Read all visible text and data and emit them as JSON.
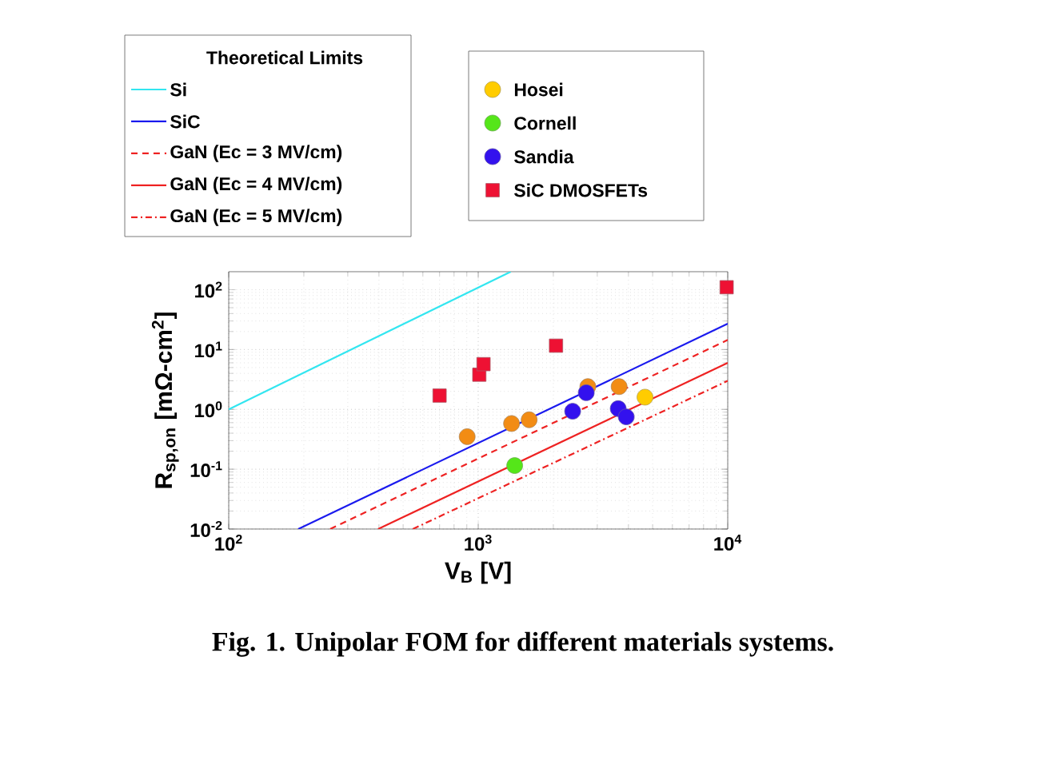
{
  "chart_data": {
    "type": "scatter",
    "xlabel": "V$_{B}$ [V]",
    "ylabel": "R$_{sp,on}$ [mΩ-cm$^{2}$]",
    "legend_title": "Theoretical Limits",
    "legend": "top",
    "grid": true,
    "log": "xy",
    "xlim": [
      100,
      10000
    ],
    "ylim": [
      0.01,
      200
    ],
    "xticks": [
      {
        "value": 100,
        "label": "10$^{2}$"
      },
      {
        "value": 1000,
        "label": "10$^{3}$"
      },
      {
        "value": 10000,
        "label": "10$^{4}$"
      }
    ],
    "yticks": [
      {
        "value": 0.01,
        "label": "10$^{-2}$"
      },
      {
        "value": 0.1,
        "label": "10$^{-1}$"
      },
      {
        "value": 1,
        "label": "10$^{0}$"
      },
      {
        "value": 10,
        "label": "10$^{1}$"
      },
      {
        "value": 100,
        "label": "10$^{2}$"
      }
    ],
    "series": [
      {
        "name": "Si",
        "type": "line",
        "line_style": "solid",
        "color": "#33e6f0",
        "x": [
          100,
          1350
        ],
        "values": [
          1.0,
          200
        ]
      },
      {
        "name": "SiC",
        "type": "line",
        "line_style": "solid",
        "color": "#1a1aee",
        "x": [
          190,
          10000
        ],
        "values": [
          0.01,
          27
        ]
      },
      {
        "name": "GaN (Ec = 3 MV/cm)",
        "type": "line",
        "line_style": "dashed",
        "color": "#ee2222",
        "x": [
          255,
          10000
        ],
        "values": [
          0.01,
          14.5
        ]
      },
      {
        "name": "GaN (Ec = 4 MV/cm)",
        "type": "line",
        "line_style": "solid",
        "color": "#ee2222",
        "x": [
          397,
          10000
        ],
        "values": [
          0.01,
          6.0
        ]
      },
      {
        "name": "GaN (Ec = 5 MV/cm)",
        "type": "line",
        "line_style": "dashdot",
        "color": "#ee2222",
        "x": [
          547,
          10000
        ],
        "values": [
          0.01,
          3.0
        ]
      },
      {
        "type": "scatter",
        "marker": "circle",
        "color": "#f28c14",
        "x": [
          903,
          1360,
          1600,
          2750,
          3670
        ],
        "values": [
          0.35,
          0.58,
          0.67,
          2.4,
          2.4
        ]
      },
      {
        "name": "Hosei",
        "type": "scatter",
        "marker": "circle",
        "color": "#ffcc00",
        "x": [
          4660
        ],
        "values": [
          1.6
        ]
      },
      {
        "name": "Cornell",
        "type": "scatter",
        "marker": "circle",
        "color": "#55e619",
        "x": [
          1400
        ],
        "values": [
          0.115
        ]
      },
      {
        "name": "Sandia",
        "type": "scatter",
        "marker": "circle",
        "color": "#3311ee",
        "x": [
          2390,
          2710,
          3640,
          3920
        ],
        "values": [
          0.93,
          1.9,
          1.03,
          0.75
        ]
      },
      {
        "name": "SiC DMOSFETs",
        "type": "scatter",
        "marker": "square",
        "color": "#ee1133",
        "x": [
          700,
          1010,
          1050,
          2050,
          9900
        ],
        "values": [
          1.7,
          3.8,
          5.7,
          11.6,
          110
        ]
      }
    ],
    "annotations": [
      "Fig. 1. Unipolar FOM for different materials systems."
    ]
  }
}
